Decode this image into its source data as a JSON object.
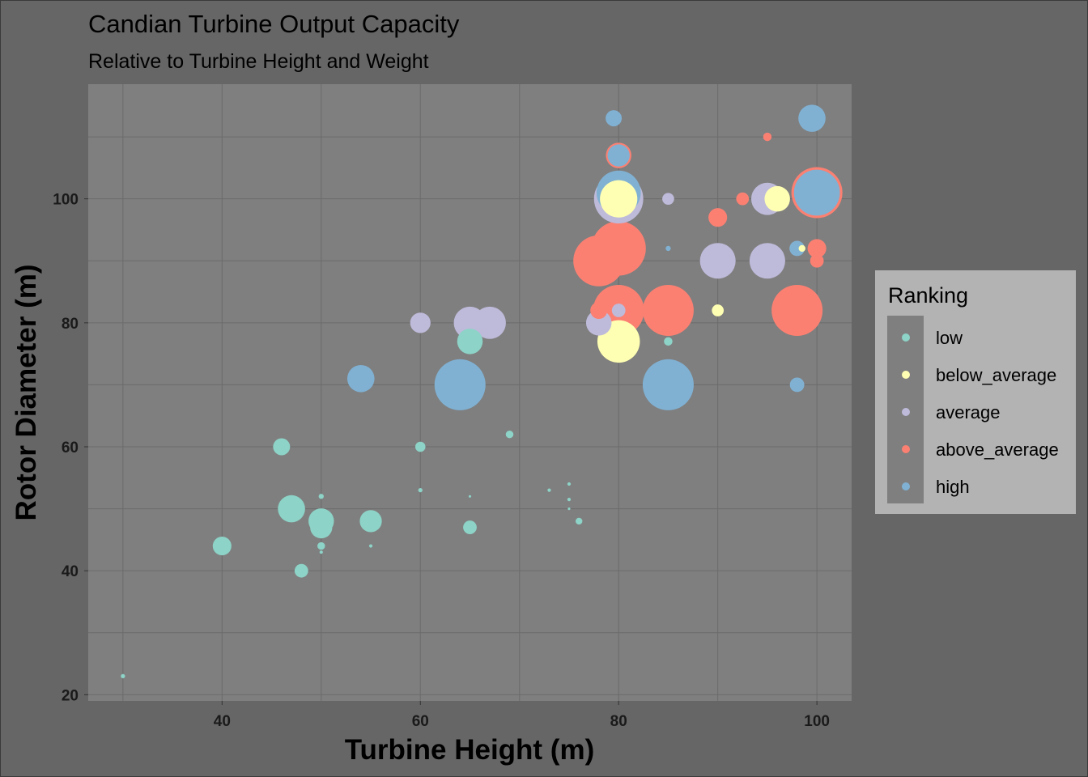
{
  "chart_data": {
    "type": "scatter",
    "title": "Candian Turbine Output Capacity",
    "subtitle": "Relative to Turbine Height and Weight",
    "xlabel": "Turbine Height (m)",
    "ylabel": "Rotor Diameter (m)",
    "xlim": [
      26.5,
      103.5
    ],
    "ylim": [
      19,
      118.5
    ],
    "x_ticks": [
      40,
      60,
      80,
      100
    ],
    "y_ticks": [
      20,
      40,
      60,
      80,
      100
    ],
    "grid": true,
    "legend": {
      "title": "Ranking",
      "position": "right",
      "entries": [
        "low",
        "below_average",
        "average",
        "above_average",
        "high"
      ]
    },
    "colors": {
      "low": "#8DD3C7",
      "below_average": "#FFFFB3",
      "average": "#BEBADA",
      "above_average": "#FB8072",
      "high": "#80B1D3",
      "panel": "#7F7F7F",
      "background": "#666666",
      "legend_background": "#B3B3B3",
      "grid": "#6B6B6B"
    },
    "note_size": "r is relative bubble size (turbine weight)",
    "points": [
      {
        "x": 30,
        "y": 23,
        "r": 0.25,
        "rank": "low"
      },
      {
        "x": 40,
        "y": 44,
        "r": 1.1,
        "rank": "low"
      },
      {
        "x": 46,
        "y": 60,
        "r": 1.0,
        "rank": "low"
      },
      {
        "x": 47,
        "y": 50,
        "r": 1.6,
        "rank": "low"
      },
      {
        "x": 48,
        "y": 40,
        "r": 0.8,
        "rank": "low"
      },
      {
        "x": 50,
        "y": 48,
        "r": 1.5,
        "rank": "low"
      },
      {
        "x": 50,
        "y": 47,
        "r": 1.3,
        "rank": "low"
      },
      {
        "x": 50,
        "y": 52,
        "r": 0.3,
        "rank": "low"
      },
      {
        "x": 50,
        "y": 44,
        "r": 0.45,
        "rank": "low"
      },
      {
        "x": 50,
        "y": 43,
        "r": 0.2,
        "rank": "low"
      },
      {
        "x": 55,
        "y": 48,
        "r": 1.3,
        "rank": "low"
      },
      {
        "x": 55,
        "y": 44,
        "r": 0.2,
        "rank": "low"
      },
      {
        "x": 60,
        "y": 60,
        "r": 0.6,
        "rank": "low"
      },
      {
        "x": 60,
        "y": 53,
        "r": 0.25,
        "rank": "low"
      },
      {
        "x": 65,
        "y": 77,
        "r": 1.5,
        "rank": "low"
      },
      {
        "x": 65,
        "y": 47,
        "r": 0.8,
        "rank": "low"
      },
      {
        "x": 65,
        "y": 52,
        "r": 0.15,
        "rank": "low"
      },
      {
        "x": 69,
        "y": 62,
        "r": 0.45,
        "rank": "low"
      },
      {
        "x": 73,
        "y": 53,
        "r": 0.2,
        "rank": "low"
      },
      {
        "x": 75,
        "y": 54,
        "r": 0.2,
        "rank": "low"
      },
      {
        "x": 75,
        "y": 51.5,
        "r": 0.2,
        "rank": "low"
      },
      {
        "x": 75,
        "y": 50,
        "r": 0.15,
        "rank": "low"
      },
      {
        "x": 76,
        "y": 48,
        "r": 0.4,
        "rank": "low"
      },
      {
        "x": 85,
        "y": 77,
        "r": 0.5,
        "rank": "low"
      },
      {
        "x": 60,
        "y": 80,
        "r": 1.2,
        "rank": "average"
      },
      {
        "x": 65,
        "y": 80,
        "r": 1.9,
        "rank": "average"
      },
      {
        "x": 67,
        "y": 80,
        "r": 1.9,
        "rank": "average"
      },
      {
        "x": 78,
        "y": 80,
        "r": 1.5,
        "rank": "average"
      },
      {
        "x": 80,
        "y": 100,
        "r": 2.9,
        "rank": "average"
      },
      {
        "x": 85,
        "y": 100,
        "r": 0.7,
        "rank": "average"
      },
      {
        "x": 90,
        "y": 90,
        "r": 2.1,
        "rank": "average"
      },
      {
        "x": 95,
        "y": 90,
        "r": 2.1,
        "rank": "average"
      },
      {
        "x": 95,
        "y": 100,
        "r": 1.9,
        "rank": "average"
      },
      {
        "x": 80,
        "y": 82,
        "r": 0.8,
        "rank": "average"
      },
      {
        "x": 80,
        "y": 107,
        "r": 1.5,
        "rank": "above_average"
      },
      {
        "x": 78,
        "y": 90,
        "r": 3.0,
        "rank": "above_average"
      },
      {
        "x": 80,
        "y": 92,
        "r": 3.2,
        "rank": "above_average"
      },
      {
        "x": 78,
        "y": 82,
        "r": 1.0,
        "rank": "above_average"
      },
      {
        "x": 80,
        "y": 82,
        "r": 3.0,
        "rank": "above_average"
      },
      {
        "x": 85,
        "y": 82,
        "r": 3.0,
        "rank": "above_average"
      },
      {
        "x": 90,
        "y": 97,
        "r": 1.1,
        "rank": "above_average"
      },
      {
        "x": 92.5,
        "y": 100,
        "r": 0.75,
        "rank": "above_average"
      },
      {
        "x": 95,
        "y": 110,
        "r": 0.5,
        "rank": "above_average"
      },
      {
        "x": 98,
        "y": 82,
        "r": 3.0,
        "rank": "above_average"
      },
      {
        "x": 100,
        "y": 101,
        "r": 3.0,
        "rank": "above_average"
      },
      {
        "x": 100,
        "y": 92,
        "r": 1.1,
        "rank": "above_average"
      },
      {
        "x": 100,
        "y": 90,
        "r": 0.8,
        "rank": "above_average"
      },
      {
        "x": 80,
        "y": 77,
        "r": 2.5,
        "rank": "below_average"
      },
      {
        "x": 80,
        "y": 100,
        "r": 2.2,
        "rank": "below_average"
      },
      {
        "x": 90,
        "y": 82,
        "r": 0.7,
        "rank": "below_average"
      },
      {
        "x": 96,
        "y": 100,
        "r": 1.5,
        "rank": "below_average"
      },
      {
        "x": 98.5,
        "y": 92,
        "r": 0.4,
        "rank": "below_average"
      },
      {
        "x": 54,
        "y": 71,
        "r": 1.6,
        "rank": "high"
      },
      {
        "x": 64,
        "y": 70,
        "r": 3.0,
        "rank": "high"
      },
      {
        "x": 79.5,
        "y": 113,
        "r": 0.95,
        "rank": "high"
      },
      {
        "x": 80,
        "y": 107,
        "r": 1.3,
        "rank": "high"
      },
      {
        "x": 80,
        "y": 101,
        "r": 2.6,
        "rank": "high"
      },
      {
        "x": 85,
        "y": 92,
        "r": 0.3,
        "rank": "high"
      },
      {
        "x": 84.5,
        "y": 71,
        "r": 2.0,
        "rank": "high"
      },
      {
        "x": 85,
        "y": 70,
        "r": 3.0,
        "rank": "high"
      },
      {
        "x": 98,
        "y": 70,
        "r": 0.85,
        "rank": "high"
      },
      {
        "x": 98,
        "y": 92,
        "r": 0.9,
        "rank": "high"
      },
      {
        "x": 99.5,
        "y": 113,
        "r": 1.6,
        "rank": "high"
      },
      {
        "x": 100,
        "y": 101,
        "r": 2.7,
        "rank": "high"
      }
    ]
  }
}
